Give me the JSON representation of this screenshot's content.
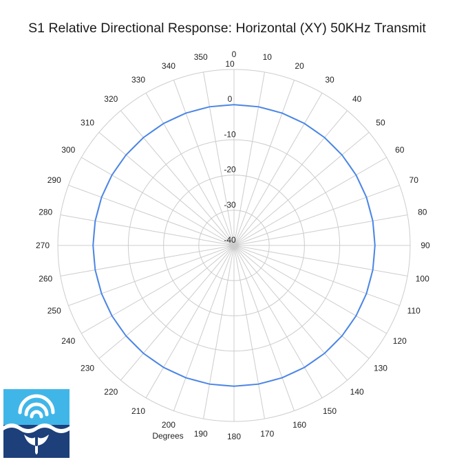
{
  "chart_data": {
    "type": "polar-line",
    "title": "S1 Relative Directional Response: Horizontal (XY) 50KHz Transmit",
    "angular_axis_label": "Degrees",
    "angular_ticks": [
      0,
      10,
      20,
      30,
      40,
      50,
      60,
      70,
      80,
      90,
      100,
      110,
      120,
      130,
      140,
      150,
      160,
      170,
      180,
      190,
      200,
      210,
      220,
      230,
      240,
      250,
      260,
      270,
      280,
      290,
      300,
      310,
      320,
      330,
      340,
      350
    ],
    "radial_ticks": [
      10,
      0,
      -10,
      -20,
      -30,
      -40
    ],
    "radial_range": [
      -40,
      10
    ],
    "grid": true,
    "series": [
      {
        "color": "#4a86e8",
        "angles": [
          0,
          10,
          20,
          30,
          40,
          50,
          60,
          70,
          80,
          90,
          100,
          110,
          120,
          130,
          140,
          150,
          160,
          170,
          180,
          190,
          200,
          210,
          220,
          230,
          240,
          250,
          260,
          270,
          280,
          290,
          300,
          310,
          320,
          330,
          340,
          350
        ],
        "values": [
          0,
          0,
          0,
          0,
          0,
          0,
          0,
          0,
          0,
          0,
          0,
          0,
          0,
          0,
          0,
          0,
          0,
          0,
          0,
          0,
          0,
          0,
          0,
          0,
          0,
          0,
          0,
          0,
          0,
          0,
          0,
          0,
          0,
          0,
          0,
          0
        ]
      }
    ]
  },
  "logo": {
    "name": "company-logo",
    "colors": {
      "sky": "#40b6e8",
      "sea": "#1d3f7a",
      "fg": "#ffffff"
    }
  }
}
